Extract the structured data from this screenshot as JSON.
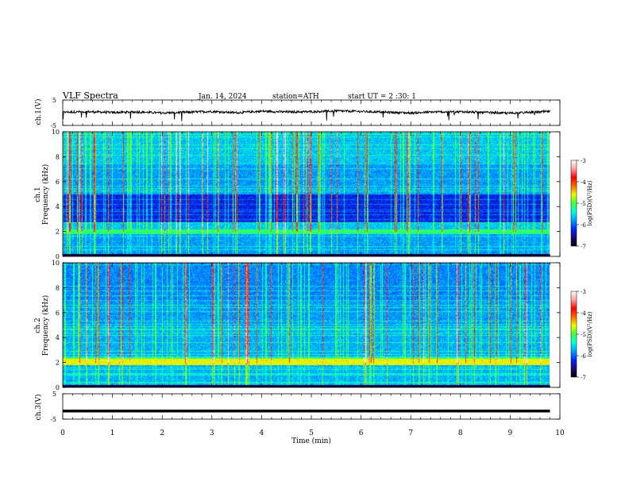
{
  "header": {
    "title": "VLF Spectra",
    "date": "Jan. 14, 2024",
    "station": "station=ATH",
    "start": "start UT = 2 :30: 1"
  },
  "chart_data": [
    {
      "type": "line",
      "panel": "ch1-waveform",
      "ylabel": "ch.1(V)",
      "ylim": [
        -5,
        5
      ],
      "yticks": [
        "5",
        "-5"
      ],
      "x": [
        0.0,
        0.5,
        1.0,
        1.5,
        2.0,
        2.5,
        3.0,
        3.5,
        4.0,
        4.5,
        5.0,
        5.5,
        6.0,
        6.5,
        7.0,
        7.5,
        8.0,
        8.5,
        9.0,
        9.5,
        9.8
      ],
      "values": [
        0.2,
        0.4,
        0.1,
        0.3,
        -0.1,
        0.2,
        0.5,
        0.0,
        0.6,
        0.3,
        0.4,
        0.7,
        0.5,
        0.2,
        -0.1,
        0.3,
        0.4,
        0.1,
        -0.2,
        0.2,
        0.5
      ],
      "color": "#000000"
    },
    {
      "type": "heatmap",
      "panel": "ch1-spectrogram",
      "ylabel": "ch.1 Frequency (kHz)",
      "ylim": [
        0,
        10
      ],
      "yticks": [
        "0",
        "2",
        "4",
        "6",
        "8",
        "10"
      ],
      "colorbar": {
        "label": "log(PSD)(V²/Hz)",
        "range": [
          -7,
          -3
        ],
        "ticks": [
          "-3",
          "-4",
          "-5",
          "-6",
          "-7"
        ]
      }
    },
    {
      "type": "heatmap",
      "panel": "ch2-spectrogram",
      "ylabel": "ch.2 Frequency (kHz)",
      "ylim": [
        0,
        10
      ],
      "yticks": [
        "0",
        "2",
        "4",
        "6",
        "8",
        "10"
      ],
      "colorbar": {
        "label": "log(PSD)(V²/Hz)",
        "range": [
          -7,
          -3
        ],
        "ticks": [
          "-3",
          "-4",
          "-5",
          "-6",
          "-7"
        ]
      }
    },
    {
      "type": "line",
      "panel": "ch3-waveform",
      "ylabel": "ch.3(V)",
      "ylim": [
        -5,
        5
      ],
      "yticks": [
        "5",
        "-5"
      ],
      "x": [
        0.0,
        9.8
      ],
      "values": [
        -1.8,
        -1.8
      ],
      "color": "#000000"
    }
  ],
  "xaxis": {
    "label": "Time (min)",
    "range": [
      0,
      10
    ],
    "ticks": [
      "0",
      "1",
      "2",
      "3",
      "4",
      "5",
      "6",
      "7",
      "8",
      "9",
      "10"
    ]
  },
  "colors": {
    "colormap": [
      "#000000",
      "#1a0a80",
      "#0028ff",
      "#00a0ff",
      "#00ffe0",
      "#40ff40",
      "#e8ff00",
      "#ff6a00",
      "#ff0000",
      "#ffa0a0",
      "#ffffff"
    ]
  }
}
